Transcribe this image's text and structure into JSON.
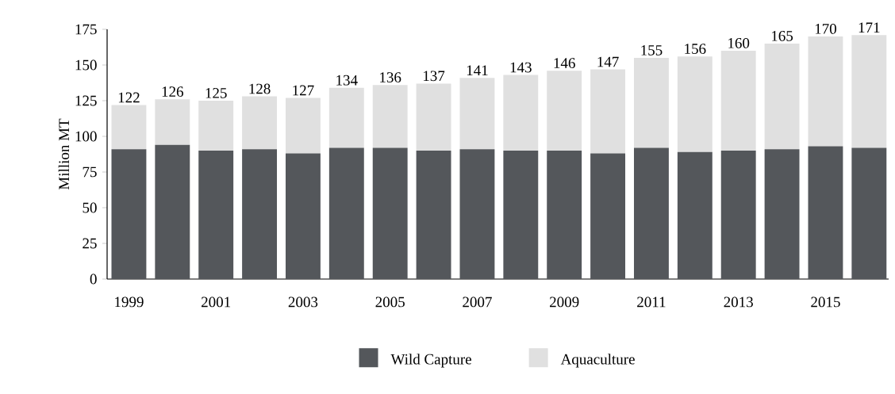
{
  "chart_data": {
    "type": "bar",
    "stacked": true,
    "ylabel": "Million MT",
    "categories": [
      "1999",
      null,
      "2001",
      null,
      "2003",
      null,
      "2005",
      null,
      "2007",
      null,
      "2009",
      null,
      "2011",
      null,
      "2013",
      null,
      "2015",
      null
    ],
    "series": [
      {
        "name": "Wild Capture",
        "color": "#54575b",
        "values": [
          91,
          94,
          90,
          91,
          88,
          92,
          92,
          90,
          91,
          90,
          90,
          88,
          92,
          89,
          90,
          91,
          93,
          92
        ]
      },
      {
        "name": "Aquaculture",
        "color": "#e0e0e0",
        "values": [
          31,
          32,
          35,
          37,
          39,
          42,
          44,
          47,
          50,
          53,
          56,
          59,
          63,
          67,
          70,
          74,
          77,
          79
        ]
      }
    ],
    "totals": [
      "122",
      "126",
      "125",
      "128",
      "127",
      "134",
      "136",
      "137",
      "141",
      "143",
      "146",
      "147",
      "155",
      "156",
      "160",
      "165",
      "170",
      "171"
    ],
    "ylim": [
      0,
      175
    ],
    "yticks": [
      0,
      25,
      50,
      75,
      100,
      125,
      150,
      175
    ],
    "grid": false,
    "legend": "bottom"
  }
}
